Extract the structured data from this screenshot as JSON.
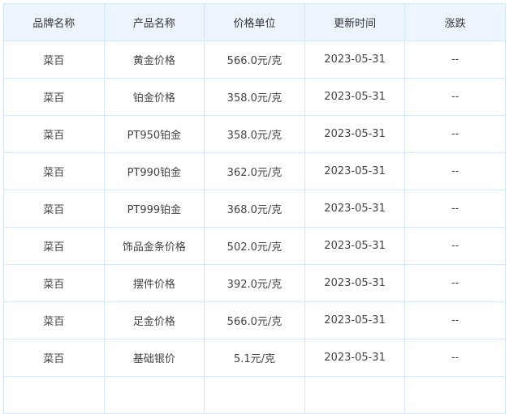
{
  "table": {
    "headers": [
      "品牌名称",
      "产品名称",
      "价格单位",
      "更新时间",
      "涨跌"
    ],
    "rows": [
      [
        "菜百",
        "黄金价格",
        "566.0元/克",
        "2023-05-31",
        "--"
      ],
      [
        "菜百",
        "铂金价格",
        "358.0元/克",
        "2023-05-31",
        "--"
      ],
      [
        "菜百",
        "PT950铂金",
        "358.0元/克",
        "2023-05-31",
        "--"
      ],
      [
        "菜百",
        "PT990铂金",
        "362.0元/克",
        "2023-05-31",
        "--"
      ],
      [
        "菜百",
        "PT999铂金",
        "368.0元/克",
        "2023-05-31",
        "--"
      ],
      [
        "菜百",
        "饰品金条价格",
        "502.0元/克",
        "2023-05-31",
        "--"
      ],
      [
        "菜百",
        "摆件价格",
        "392.0元/克",
        "2023-05-31",
        "--"
      ],
      [
        "菜百",
        "足金价格",
        "566.0元/克",
        "2023-05-31",
        "--"
      ],
      [
        "菜百",
        "基础银价",
        "5.1元/克",
        "2023-05-31",
        "--"
      ]
    ]
  },
  "colors": {
    "header_bg": "#edf5ff",
    "border": "#d6e6fb",
    "text": "#444444"
  }
}
